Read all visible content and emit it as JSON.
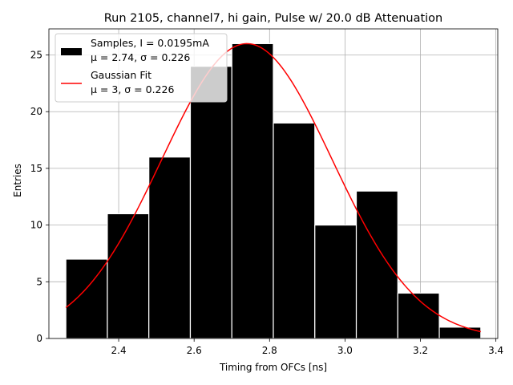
{
  "chart_data": {
    "type": "bar",
    "title": "Run 2105, channel7, hi gain, Pulse w/ 20.0 dB Attenuation",
    "xlabel": "Timing from OFCs [ns]",
    "ylabel": "Entries",
    "xlim": [
      2.215,
      3.405
    ],
    "ylim": [
      0,
      27.3
    ],
    "grid": true,
    "x_ticks": [
      2.4,
      2.6,
      2.8,
      3.0,
      3.2,
      3.4
    ],
    "x_tick_labels": [
      "2.4",
      "2.6",
      "2.8",
      "3.0",
      "3.2",
      "3.4"
    ],
    "y_ticks": [
      0,
      5,
      10,
      15,
      20,
      25
    ],
    "y_tick_labels": [
      "0",
      "5",
      "10",
      "15",
      "20",
      "25"
    ],
    "histogram": {
      "name": "Samples",
      "bin_edges": [
        2.26,
        2.37,
        2.48,
        2.59,
        2.7,
        2.81,
        2.92,
        3.03,
        3.14,
        3.25,
        3.36
      ],
      "counts": [
        7,
        11,
        16,
        24,
        26,
        19,
        10,
        13,
        4,
        1
      ],
      "color": "#000000",
      "edge_color": "#ffffff"
    },
    "gaussian_fit": {
      "name": "Gaussian Fit",
      "amplitude": 26.0,
      "mu": 2.74,
      "sigma": 0.226,
      "x_range": [
        2.26,
        3.36
      ],
      "color": "#ff0000"
    },
    "legend": {
      "location": "top-left",
      "entries": [
        {
          "line1": "Samples, I = 0.0195mA",
          "line2": "μ = 2.74, σ = 0.226",
          "swatch": "patch"
        },
        {
          "line1": "Gaussian Fit",
          "line2": "μ = 3, σ = 0.226",
          "swatch": "line"
        }
      ]
    }
  }
}
